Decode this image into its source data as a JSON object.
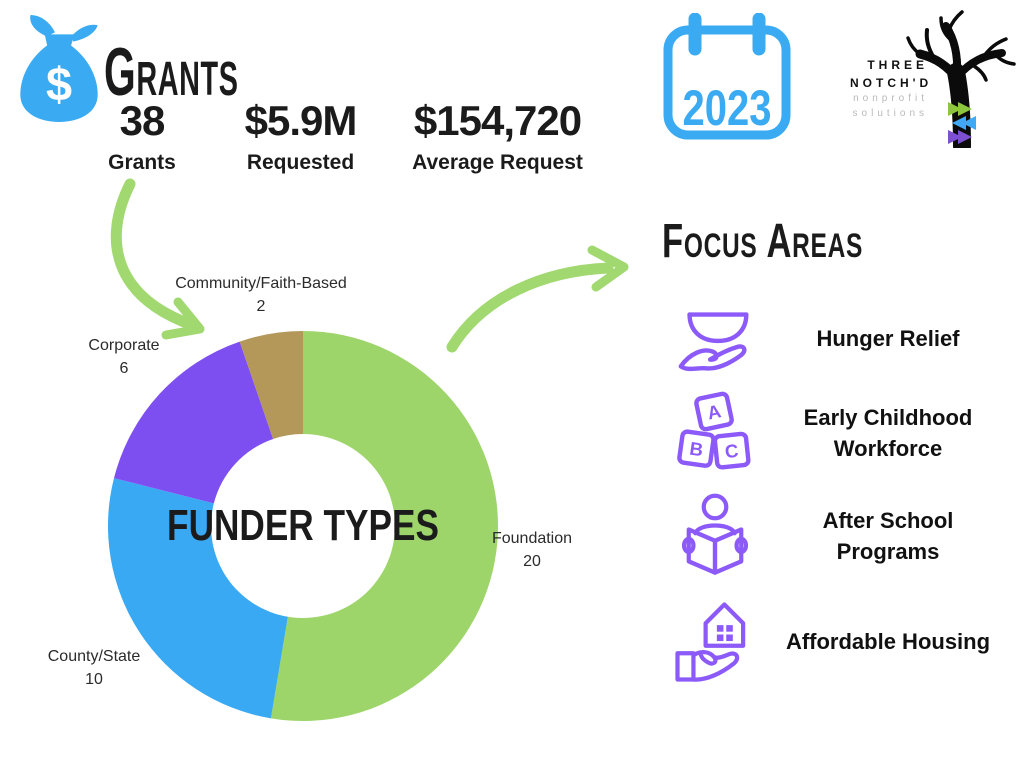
{
  "header": {
    "title": "Grants",
    "stats": [
      {
        "value": "38",
        "label": "Grants"
      },
      {
        "value": "$5.9M",
        "label": "Requested"
      },
      {
        "value": "$154,720",
        "label": "Average Request"
      }
    ],
    "year_badge": "2023",
    "logo": {
      "line1": "THREE",
      "line2": "NOTCH'D",
      "line3": "nonprofit",
      "line4": "solutions"
    }
  },
  "chart_data": {
    "type": "pie",
    "donut": true,
    "title": "FUNDER TYPES",
    "start_angle_deg": 0,
    "direction": "clockwise",
    "segments": [
      {
        "label": "Foundation",
        "value": 20,
        "color": "#9ed56b"
      },
      {
        "label": "County/State",
        "value": 10,
        "color": "#39a9f4"
      },
      {
        "label": "Corporate",
        "value": 6,
        "color": "#7e4ff0"
      },
      {
        "label": "Community/Faith-Based",
        "value": 2,
        "color": "#b3985a"
      }
    ],
    "total": 38
  },
  "focus": {
    "heading": "Focus Areas",
    "items": [
      {
        "icon": "bowl-hand-icon",
        "label": "Hunger Relief"
      },
      {
        "icon": "abc-blocks-icon",
        "label": "Early Childhood Workforce"
      },
      {
        "icon": "reading-person-icon",
        "label": "After School Programs"
      },
      {
        "icon": "house-hand-icon",
        "label": "Affordable Housing"
      }
    ]
  },
  "colors": {
    "accent-blue": "#3aabf2",
    "arrow-green": "#a1d870",
    "icon-purple": "#8c5af8",
    "ink": "#1b1b1b",
    "logo-gray": "#b9b9b9",
    "notch-green": "#8cc63e",
    "notch-blue": "#3fa9f5",
    "notch-purple": "#7d4fd1"
  }
}
